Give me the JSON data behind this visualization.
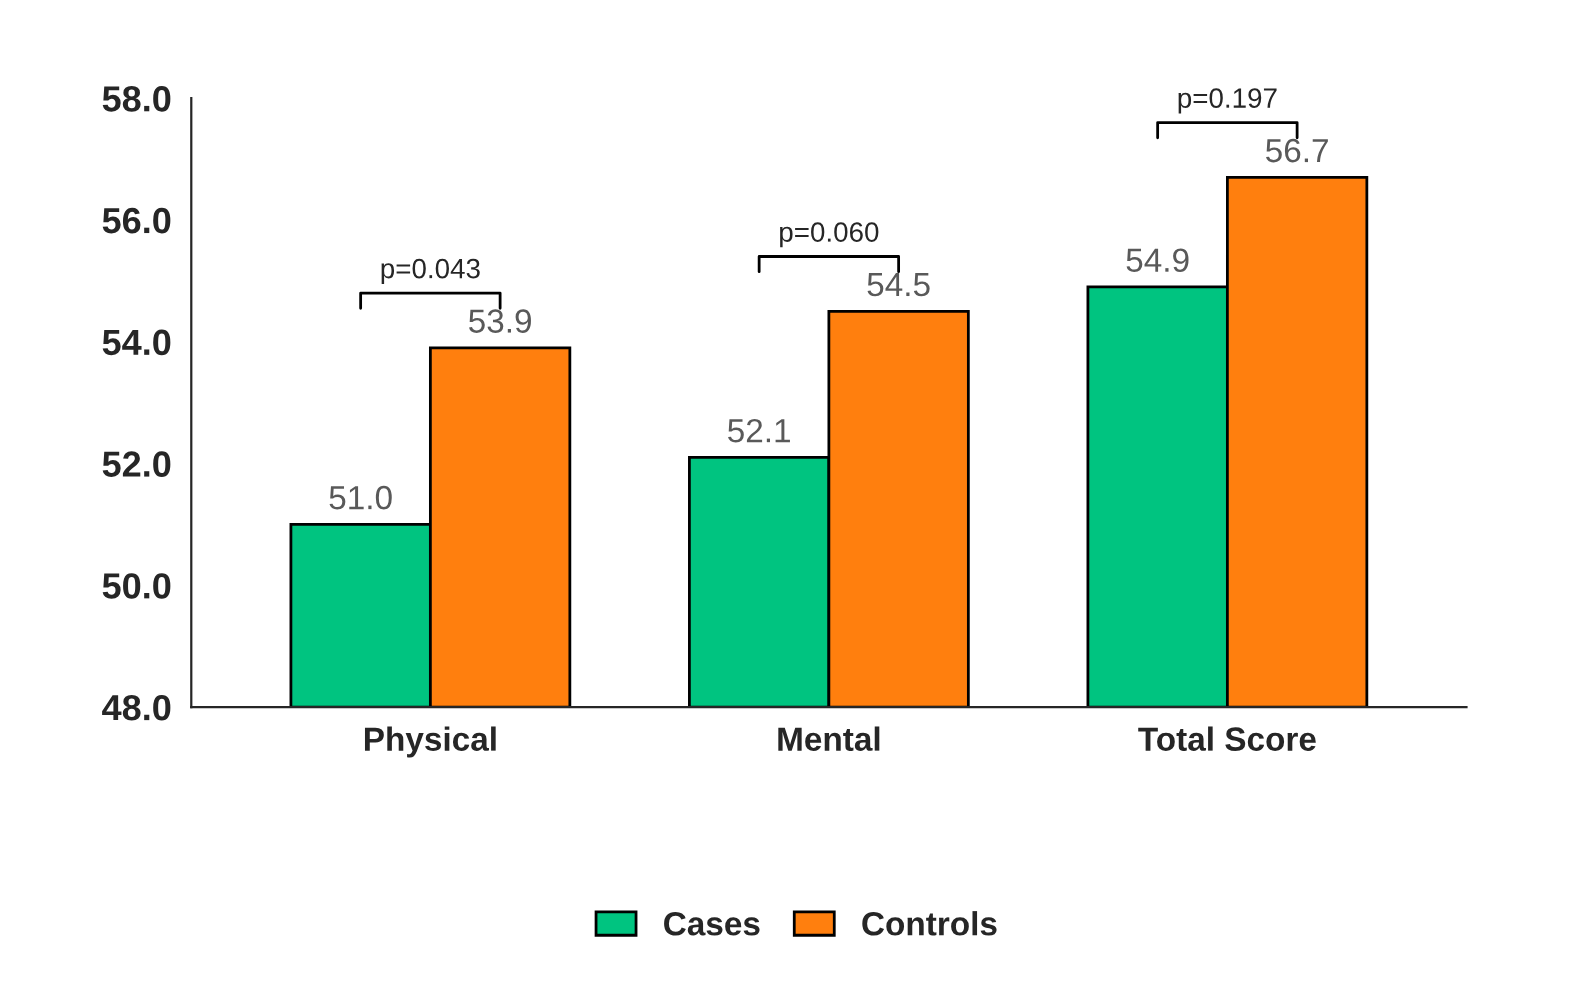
{
  "chart_data": {
    "type": "bar",
    "categories": [
      "Physical",
      "Mental",
      "Total Score"
    ],
    "series": [
      {
        "name": "Cases",
        "color": "#00c480",
        "values": [
          51.0,
          52.1,
          54.9
        ],
        "value_labels": [
          "51.0",
          "52.1",
          "54.9"
        ]
      },
      {
        "name": "Controls",
        "color": "#ff7f0e",
        "values": [
          53.9,
          54.5,
          56.7
        ],
        "value_labels": [
          "53.9",
          "54.5",
          "56.7"
        ]
      }
    ],
    "ylim": [
      48,
      58
    ],
    "yticks": [
      {
        "value": 48,
        "label": "48.0"
      },
      {
        "value": 50,
        "label": "50.0"
      },
      {
        "value": 52,
        "label": "52.0"
      },
      {
        "value": 54,
        "label": "54.0"
      },
      {
        "value": 56,
        "label": "56.0"
      },
      {
        "value": 58,
        "label": "58.0"
      }
    ],
    "annotations": [
      "p=0.043",
      "p=0.060",
      "p=0.197"
    ],
    "grid": false,
    "legend": "bottom"
  }
}
